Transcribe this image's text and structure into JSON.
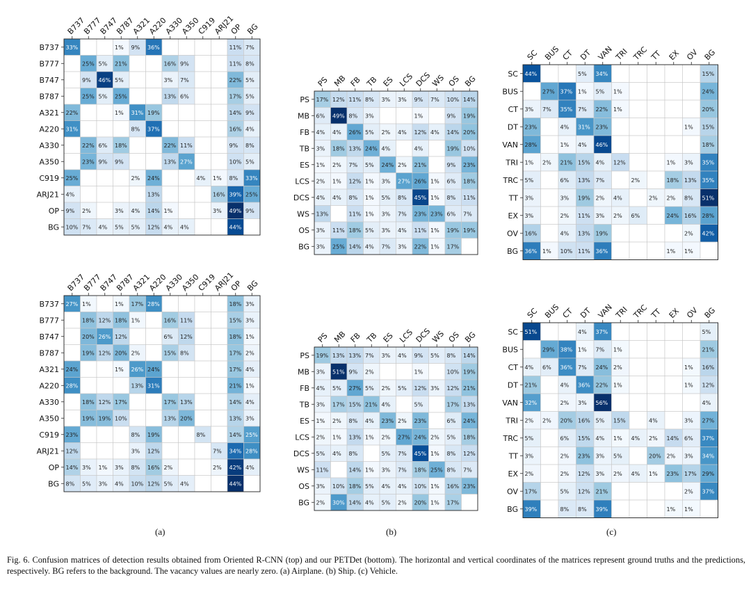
{
  "chart_data": [
    {
      "type": "heatmap",
      "row_labels": [
        "B737",
        "B777",
        "B747",
        "B787",
        "A321",
        "A220",
        "A330",
        "A350",
        "C919",
        "ARJ21",
        "OP",
        "BG"
      ],
      "col_labels": [
        "B737",
        "B777",
        "B747",
        "B787",
        "A321",
        "A220",
        "A330",
        "A350",
        "C919",
        "ARJ21",
        "OP",
        "BG"
      ],
      "unit": "%",
      "values": [
        [
          33,
          null,
          null,
          1,
          9,
          36,
          null,
          null,
          null,
          null,
          11,
          7
        ],
        [
          null,
          25,
          5,
          21,
          null,
          null,
          16,
          9,
          null,
          null,
          11,
          8
        ],
        [
          null,
          9,
          46,
          5,
          null,
          null,
          3,
          7,
          null,
          null,
          22,
          5
        ],
        [
          null,
          25,
          5,
          25,
          null,
          null,
          13,
          6,
          null,
          null,
          17,
          5
        ],
        [
          22,
          null,
          null,
          1,
          31,
          19,
          null,
          null,
          null,
          null,
          14,
          9
        ],
        [
          31,
          null,
          null,
          null,
          8,
          37,
          null,
          null,
          null,
          null,
          16,
          4
        ],
        [
          null,
          22,
          6,
          18,
          null,
          null,
          22,
          11,
          null,
          null,
          9,
          8
        ],
        [
          null,
          23,
          9,
          9,
          null,
          null,
          13,
          27,
          null,
          null,
          10,
          5
        ],
        [
          25,
          null,
          null,
          null,
          2,
          24,
          null,
          null,
          4,
          1,
          8,
          33
        ],
        [
          4,
          null,
          null,
          null,
          null,
          13,
          null,
          null,
          null,
          16,
          39,
          25
        ],
        [
          9,
          2,
          null,
          3,
          4,
          14,
          1,
          null,
          null,
          3,
          49,
          9
        ],
        [
          10,
          7,
          4,
          5,
          5,
          12,
          4,
          4,
          null,
          null,
          44,
          null
        ]
      ]
    },
    {
      "type": "heatmap",
      "row_labels": [
        "PS",
        "MB",
        "FB",
        "TB",
        "ES",
        "LCS",
        "DCS",
        "WS",
        "OS",
        "BG"
      ],
      "col_labels": [
        "PS",
        "MB",
        "FB",
        "TB",
        "ES",
        "LCS",
        "DCS",
        "WS",
        "OS",
        "BG"
      ],
      "unit": "%",
      "values": [
        [
          17,
          12,
          11,
          8,
          3,
          3,
          9,
          7,
          10,
          14
        ],
        [
          6,
          49,
          8,
          3,
          null,
          null,
          1,
          null,
          9,
          19
        ],
        [
          4,
          4,
          26,
          5,
          2,
          4,
          12,
          4,
          14,
          20
        ],
        [
          3,
          18,
          13,
          24,
          4,
          null,
          4,
          null,
          19,
          10
        ],
        [
          1,
          2,
          7,
          5,
          24,
          2,
          21,
          null,
          9,
          23
        ],
        [
          2,
          1,
          12,
          1,
          3,
          27,
          26,
          1,
          6,
          18
        ],
        [
          4,
          4,
          8,
          1,
          5,
          8,
          45,
          1,
          8,
          11
        ],
        [
          13,
          null,
          11,
          1,
          3,
          7,
          23,
          23,
          6,
          7
        ],
        [
          3,
          11,
          18,
          5,
          3,
          4,
          11,
          1,
          19,
          19
        ],
        [
          3,
          25,
          14,
          4,
          7,
          3,
          22,
          1,
          17,
          null
        ]
      ]
    },
    {
      "type": "heatmap",
      "row_labels": [
        "SC",
        "BUS",
        "CT",
        "DT",
        "VAN",
        "TRI",
        "TRC",
        "TT",
        "EX",
        "OV",
        "BG"
      ],
      "col_labels": [
        "SC",
        "BUS",
        "CT",
        "DT",
        "VAN",
        "TRI",
        "TRC",
        "TT",
        "EX",
        "OV",
        "BG"
      ],
      "unit": "%",
      "values": [
        [
          44,
          null,
          null,
          5,
          34,
          null,
          null,
          null,
          null,
          null,
          15
        ],
        [
          null,
          27,
          37,
          1,
          5,
          1,
          null,
          null,
          null,
          null,
          24
        ],
        [
          3,
          7,
          35,
          7,
          22,
          1,
          null,
          null,
          null,
          null,
          20
        ],
        [
          23,
          null,
          4,
          31,
          23,
          null,
          null,
          null,
          null,
          1,
          15
        ],
        [
          28,
          null,
          1,
          4,
          46,
          null,
          null,
          null,
          null,
          null,
          18
        ],
        [
          1,
          2,
          21,
          15,
          4,
          12,
          null,
          null,
          1,
          3,
          35
        ],
        [
          5,
          null,
          6,
          13,
          7,
          null,
          2,
          null,
          18,
          13,
          35
        ],
        [
          3,
          null,
          3,
          19,
          2,
          4,
          null,
          2,
          2,
          8,
          51
        ],
        [
          3,
          null,
          2,
          11,
          3,
          2,
          6,
          null,
          24,
          16,
          28
        ],
        [
          16,
          null,
          4,
          13,
          19,
          null,
          null,
          null,
          null,
          2,
          42
        ],
        [
          36,
          1,
          10,
          11,
          36,
          null,
          null,
          null,
          1,
          1,
          null
        ]
      ]
    },
    {
      "type": "heatmap",
      "row_labels": [
        "B737",
        "B777",
        "B747",
        "B787",
        "A321",
        "A220",
        "A330",
        "A350",
        "C919",
        "ARJ21",
        "OP",
        "BG"
      ],
      "col_labels": [
        "B737",
        "B777",
        "B747",
        "B787",
        "A321",
        "A220",
        "A330",
        "A350",
        "C919",
        "ARJ21",
        "OP",
        "BG"
      ],
      "unit": "%",
      "values": [
        [
          27,
          1,
          null,
          1,
          17,
          28,
          null,
          null,
          null,
          null,
          18,
          3
        ],
        [
          null,
          18,
          12,
          18,
          1,
          null,
          16,
          11,
          null,
          null,
          15,
          3
        ],
        [
          null,
          20,
          26,
          12,
          null,
          null,
          6,
          12,
          null,
          null,
          18,
          1
        ],
        [
          null,
          19,
          12,
          20,
          2,
          null,
          15,
          8,
          null,
          null,
          17,
          2
        ],
        [
          24,
          null,
          null,
          1,
          26,
          24,
          null,
          null,
          null,
          null,
          17,
          4
        ],
        [
          28,
          null,
          null,
          null,
          13,
          31,
          null,
          null,
          null,
          null,
          21,
          1
        ],
        [
          null,
          18,
          12,
          17,
          null,
          null,
          17,
          13,
          null,
          null,
          14,
          4
        ],
        [
          null,
          19,
          19,
          10,
          null,
          null,
          13,
          20,
          null,
          null,
          13,
          3
        ],
        [
          23,
          null,
          null,
          null,
          8,
          19,
          null,
          null,
          8,
          null,
          14,
          25
        ],
        [
          12,
          null,
          null,
          null,
          3,
          12,
          null,
          null,
          null,
          7,
          34,
          28
        ],
        [
          14,
          3,
          1,
          3,
          8,
          16,
          2,
          null,
          null,
          2,
          42,
          4
        ],
        [
          8,
          5,
          3,
          4,
          10,
          12,
          5,
          4,
          null,
          null,
          44,
          null
        ]
      ]
    },
    {
      "type": "heatmap",
      "row_labels": [
        "PS",
        "MB",
        "FB",
        "TB",
        "ES",
        "LCS",
        "DCS",
        "WS",
        "OS",
        "BG"
      ],
      "col_labels": [
        "PS",
        "MB",
        "FB",
        "TB",
        "ES",
        "LCS",
        "DCS",
        "WS",
        "OS",
        "BG"
      ],
      "unit": "%",
      "values": [
        [
          19,
          13,
          13,
          7,
          3,
          4,
          9,
          5,
          8,
          14
        ],
        [
          3,
          51,
          9,
          2,
          null,
          null,
          1,
          null,
          10,
          19
        ],
        [
          4,
          5,
          27,
          5,
          2,
          5,
          12,
          3,
          12,
          21
        ],
        [
          3,
          17,
          15,
          21,
          4,
          null,
          5,
          null,
          17,
          13
        ],
        [
          1,
          2,
          8,
          4,
          23,
          2,
          23,
          null,
          6,
          24
        ],
        [
          2,
          1,
          13,
          1,
          2,
          27,
          24,
          2,
          5,
          18
        ],
        [
          5,
          4,
          8,
          null,
          5,
          7,
          45,
          1,
          8,
          12
        ],
        [
          11,
          null,
          14,
          1,
          3,
          7,
          18,
          25,
          8,
          7
        ],
        [
          3,
          10,
          18,
          5,
          4,
          4,
          10,
          1,
          16,
          23
        ],
        [
          2,
          30,
          14,
          4,
          5,
          2,
          20,
          1,
          17,
          null
        ]
      ]
    },
    {
      "type": "heatmap",
      "row_labels": [
        "SC",
        "BUS",
        "CT",
        "DT",
        "VAN",
        "TRI",
        "TRC",
        "TT",
        "EX",
        "OV",
        "BG"
      ],
      "col_labels": [
        "SC",
        "BUS",
        "CT",
        "DT",
        "VAN",
        "TRI",
        "TRC",
        "TT",
        "EX",
        "OV",
        "BG"
      ],
      "unit": "%",
      "values": [
        [
          51,
          null,
          null,
          4,
          37,
          null,
          null,
          null,
          null,
          null,
          5
        ],
        [
          null,
          29,
          38,
          1,
          7,
          1,
          null,
          null,
          null,
          null,
          21
        ],
        [
          4,
          6,
          36,
          7,
          24,
          2,
          null,
          null,
          null,
          1,
          16
        ],
        [
          21,
          null,
          4,
          36,
          22,
          1,
          null,
          null,
          null,
          1,
          12
        ],
        [
          32,
          null,
          2,
          3,
          56,
          null,
          null,
          null,
          null,
          null,
          4
        ],
        [
          2,
          2,
          20,
          16,
          5,
          15,
          null,
          4,
          null,
          3,
          27
        ],
        [
          5,
          null,
          6,
          15,
          4,
          1,
          4,
          2,
          14,
          6,
          37
        ],
        [
          3,
          null,
          2,
          23,
          3,
          5,
          null,
          20,
          2,
          3,
          34
        ],
        [
          2,
          null,
          2,
          12,
          3,
          2,
          4,
          1,
          23,
          17,
          29
        ],
        [
          17,
          null,
          5,
          12,
          21,
          null,
          null,
          null,
          null,
          2,
          37
        ],
        [
          39,
          null,
          8,
          8,
          39,
          null,
          null,
          null,
          1,
          1,
          null
        ]
      ]
    }
  ],
  "subcaptions": [
    "(a)",
    "(b)",
    "(c)"
  ],
  "caption": "Fig. 6.  Confusion matrices of detection results obtained from Oriented R-CNN (top) and our PETDet (bottom). The horizontal and vertical coordinates of the matrices represent ground truths and the predictions, respectively. BG refers to the background. The vacancy values are nearly zero. (a) Airplane. (b) Ship. (c) Vehicle.",
  "colors": {
    "colormap": "Blues",
    "cell_border": "#c8c8c8",
    "low": "#f7fbff",
    "high": "#08306b"
  }
}
